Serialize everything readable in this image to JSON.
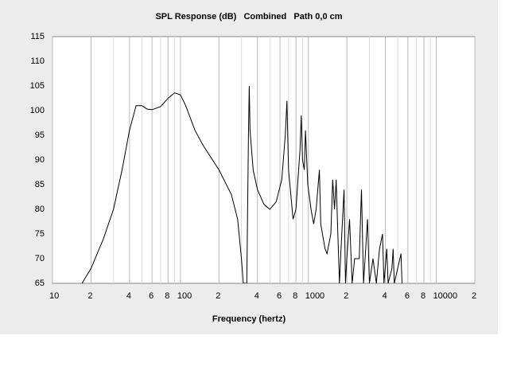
{
  "chart_data": {
    "type": "line",
    "title": "SPL Response (dB)   Combined   Path 0,0 cm",
    "x_label": "Frequency (hertz)",
    "log_x": true,
    "grid": "x",
    "xlim": [
      10,
      20000
    ],
    "ylim": [
      65,
      115
    ],
    "yticks": [
      65,
      70,
      75,
      80,
      85,
      90,
      95,
      100,
      105,
      110,
      115
    ],
    "xticks": [
      10,
      {
        "value": 20,
        "label": "2"
      },
      {
        "value": 40,
        "label": "4"
      },
      {
        "value": 60,
        "label": "6"
      },
      {
        "value": 80,
        "label": "8"
      },
      100,
      {
        "value": 200,
        "label": "2"
      },
      {
        "value": 400,
        "label": "4"
      },
      {
        "value": 600,
        "label": "6"
      },
      {
        "value": 800,
        "label": "8"
      },
      1000,
      {
        "value": 2000,
        "label": "2"
      },
      {
        "value": 4000,
        "label": "4"
      },
      {
        "value": 6000,
        "label": "6"
      },
      {
        "value": 8000,
        "label": "8"
      },
      10000,
      {
        "value": 20000,
        "label": "2"
      }
    ],
    "x_minor_ticks": [
      30,
      50,
      70,
      90,
      300,
      500,
      700,
      900,
      3000,
      5000,
      7000,
      9000
    ],
    "series": [
      {
        "color": "#000000",
        "x": [
          17,
          20,
          25,
          30,
          35,
          40,
          45,
          50,
          55,
          60,
          70,
          80,
          90,
          100,
          110,
          130,
          150,
          200,
          250,
          280,
          300,
          310,
          330,
          340,
          345,
          350,
          370,
          400,
          450,
          500,
          560,
          620,
          660,
          680,
          700,
          760,
          800,
          860,
          880,
          900,
          930,
          950,
          990,
          1050,
          1100,
          1150,
          1220,
          1250,
          1350,
          1400,
          1500,
          1550,
          1600,
          1650,
          1700,
          1750,
          1800,
          1900,
          1950,
          2000,
          2100,
          2200,
          2300,
          2500,
          2600,
          2700,
          2900,
          3000,
          3200,
          3400,
          3600,
          3800,
          3900,
          4100,
          4200,
          4500,
          4600,
          4700,
          5300,
          5400
        ],
        "values": [
          65,
          68,
          74,
          80,
          88,
          96,
          101,
          101,
          100.3,
          100.2,
          100.8,
          102.5,
          103.6,
          103.2,
          101,
          96,
          93,
          88,
          83,
          78,
          70,
          65,
          65,
          95,
          105,
          96,
          88,
          84,
          81,
          80,
          81.5,
          86,
          95,
          102,
          88,
          78,
          80,
          92,
          99,
          90,
          88,
          96,
          85,
          80,
          77,
          80,
          88,
          77,
          72,
          71,
          75,
          86,
          80,
          86,
          75,
          65,
          72,
          84,
          65,
          70,
          78,
          65,
          70,
          70,
          84,
          65,
          78,
          65,
          70,
          65,
          72,
          75,
          65,
          72,
          65,
          68,
          72,
          65,
          71,
          65
        ]
      }
    ]
  }
}
